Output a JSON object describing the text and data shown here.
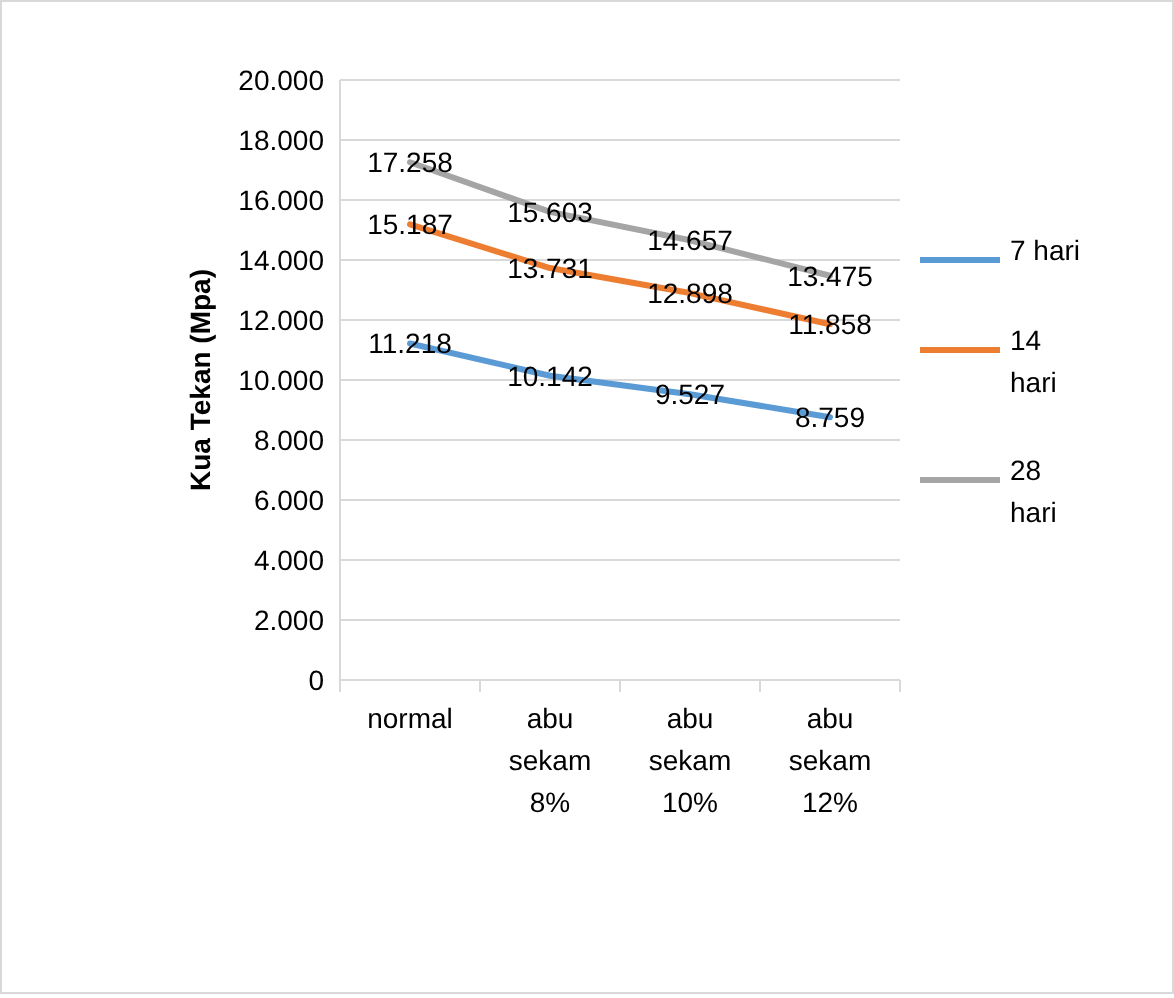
{
  "chart_data": {
    "type": "line",
    "ylabel": "Kua Tekan (Mpa)",
    "categories": [
      "normal",
      "abu sekam 8%",
      "abu sekam 10%",
      "abu sekam 12%"
    ],
    "series": [
      {
        "name": "7 hari",
        "color": "#5b9bd5",
        "values": [
          11218,
          10142,
          9527,
          8759
        ],
        "value_labels": [
          "11.218",
          "10.142",
          "9.527",
          "8.759"
        ]
      },
      {
        "name": "14 hari",
        "color": "#ed7d31",
        "values": [
          15187,
          13731,
          12898,
          11858
        ],
        "value_labels": [
          "15.187",
          "13.731",
          "12.898",
          "11.858"
        ]
      },
      {
        "name": "28 hari",
        "color": "#a5a5a5",
        "values": [
          17258,
          15603,
          14657,
          13475
        ],
        "value_labels": [
          "17.258",
          "15.603",
          "14.657",
          "13.475"
        ]
      }
    ],
    "ylim": [
      0,
      20000
    ],
    "yticks": [
      0,
      {
        "value": 2000,
        "label": "2.000"
      },
      {
        "value": 4000,
        "label": "4.000"
      },
      {
        "value": 6000,
        "label": "6.000"
      },
      {
        "value": 8000,
        "label": "8.000"
      },
      {
        "value": 10000,
        "label": "10.000"
      },
      {
        "value": 12000,
        "label": "12.000"
      },
      {
        "value": 14000,
        "label": "14.000"
      },
      {
        "value": 16000,
        "label": "16.000"
      },
      {
        "value": 18000,
        "label": "18.000"
      },
      {
        "value": 20000,
        "label": "20.000"
      }
    ],
    "grid": "y",
    "legend": "right",
    "marker": "none",
    "line_style": "solid"
  }
}
